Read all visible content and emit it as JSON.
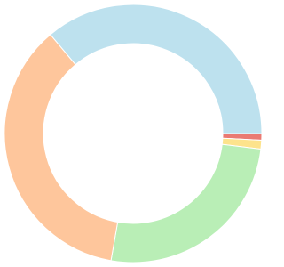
{
  "chart_data": {
    "type": "pie",
    "values": [
      36.1,
      0.8,
      1.1,
      25.8,
      36.1
    ],
    "colors": [
      "#bde1ee",
      "#ea7a72",
      "#fde38c",
      "#b9eeb6",
      "#fec69c"
    ]
  }
}
